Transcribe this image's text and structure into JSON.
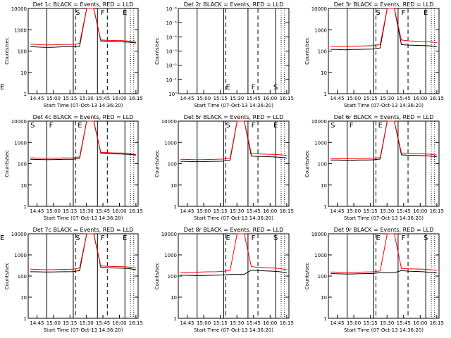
{
  "chart_data": [
    {
      "type": "line",
      "title": "Det 1c BLACK = Events, RED = LLD",
      "xlabel": "Start Time (07-Oct-13 14:36:20)",
      "ylabel": "Counts/sec",
      "ylim": [
        1,
        10000
      ],
      "yscale": "log",
      "y_ticks": [
        "1",
        "10",
        "100",
        "1000",
        "10000"
      ],
      "x_ticks": [
        "14:45",
        "15:00",
        "15:15",
        "15:30",
        "15:45",
        "16:00",
        "16:15"
      ],
      "annotations": [
        "S",
        "F",
        "E"
      ],
      "series": [
        {
          "color": "#000000",
          "values": [
            160,
            155,
            150,
            150,
            155,
            160,
            158,
            170,
            10000,
            10000,
            300,
            290,
            280,
            270,
            260,
            240
          ]
        },
        {
          "color": "#ff0000",
          "values": [
            210,
            200,
            195,
            195,
            200,
            205,
            205,
            230,
            10000,
            10000,
            330,
            320,
            310,
            310,
            290,
            260
          ]
        }
      ]
    },
    {
      "type": "line",
      "title": "Det 2r BLACK = Events, RED = LLD",
      "xlabel": "Start Time (07-Oct-13 14:36:20)",
      "ylabel": "Counts/sec",
      "ylim": [
        1,
        1e-06
      ],
      "yscale": "log",
      "y_ticks": [
        "10⁰",
        "10⁻¹",
        "10⁻²",
        "10⁻³",
        "10⁻⁴",
        "10⁻⁵",
        "10⁻⁶"
      ],
      "x_ticks": [
        "14:45",
        "15:00",
        "15:15",
        "15:30",
        "15:45",
        "16:00",
        "16:15"
      ],
      "annotations": [
        "E",
        "F",
        "S",
        "F",
        "E"
      ],
      "series": []
    },
    {
      "type": "line",
      "title": "Det 3r BLACK = Events, RED = LLD",
      "xlabel": "Start Time (07-Oct-13 14:36:20)",
      "ylabel": "Counts/sec",
      "ylim": [
        1,
        10000
      ],
      "yscale": "log",
      "y_ticks": [
        "1",
        "10",
        "100",
        "1000",
        "10000"
      ],
      "x_ticks": [
        "14:45",
        "15:00",
        "15:15",
        "15:30",
        "15:45",
        "16:00",
        "16:15"
      ],
      "annotations": [
        "S",
        "F",
        "E"
      ],
      "series": [
        {
          "color": "#000000",
          "values": [
            120,
            118,
            115,
            118,
            120,
            122,
            125,
            140,
            10000,
            10000,
            200,
            190,
            185,
            180,
            175,
            165
          ]
        },
        {
          "color": "#ff0000",
          "values": [
            170,
            165,
            165,
            170,
            172,
            175,
            180,
            200,
            10000,
            10000,
            330,
            300,
            290,
            280,
            270,
            250
          ]
        }
      ]
    },
    {
      "type": "line",
      "title": "Det 4c BLACK = Events, RED = LLD",
      "xlabel": "Start Time (07-Oct-13 14:36:20)",
      "ylabel": "Counts/sec",
      "ylim": [
        1,
        10000
      ],
      "yscale": "log",
      "y_ticks": [
        "1",
        "10",
        "100",
        "1000",
        "10000"
      ],
      "x_ticks": [
        "14:45",
        "15:00",
        "15:15",
        "15:30",
        "15:45",
        "16:00",
        "16:15"
      ],
      "annotations": [
        "S",
        "F",
        "E"
      ],
      "series": [
        {
          "color": "#000000",
          "values": [
            160,
            158,
            155,
            155,
            158,
            160,
            162,
            175,
            10000,
            10000,
            310,
            300,
            290,
            285,
            275,
            255
          ]
        },
        {
          "color": "#ff0000",
          "values": [
            190,
            185,
            180,
            180,
            185,
            188,
            190,
            210,
            10000,
            10000,
            340,
            330,
            320,
            320,
            300,
            270
          ]
        }
      ]
    },
    {
      "type": "line",
      "title": "Det 5r BLACK = Events, RED = LLD",
      "xlabel": "Start Time (07-Oct-13 14:36:20)",
      "ylabel": "Counts/sec",
      "ylim": [
        1,
        10000
      ],
      "yscale": "log",
      "y_ticks": [
        "1",
        "10",
        "100",
        "1000",
        "10000"
      ],
      "x_ticks": [
        "14:45",
        "15:00",
        "15:15",
        "15:30",
        "15:45",
        "16:00",
        "16:15"
      ],
      "annotations": [
        "S",
        "F",
        "E"
      ],
      "series": [
        {
          "color": "#000000",
          "values": [
            130,
            128,
            125,
            125,
            128,
            130,
            132,
            145,
            10000,
            10000,
            230,
            220,
            215,
            210,
            200,
            185
          ]
        },
        {
          "color": "#ff0000",
          "values": [
            160,
            158,
            155,
            155,
            158,
            160,
            165,
            180,
            10000,
            10000,
            300,
            290,
            280,
            275,
            265,
            245
          ]
        }
      ]
    },
    {
      "type": "line",
      "title": "Det 6r BLACK = Events, RED = LLD",
      "xlabel": "Start Time (07-Oct-13 14:36:20)",
      "ylabel": "Counts/sec",
      "ylim": [
        1,
        10000
      ],
      "yscale": "log",
      "y_ticks": [
        "1",
        "10",
        "100",
        "1000",
        "10000"
      ],
      "x_ticks": [
        "14:45",
        "15:00",
        "15:15",
        "15:30",
        "15:45",
        "16:00",
        "16:15"
      ],
      "annotations": [
        "S",
        "F",
        "E"
      ],
      "series": [
        {
          "color": "#000000",
          "values": [
            150,
            148,
            145,
            145,
            148,
            150,
            152,
            165,
            10000,
            10000,
            260,
            250,
            245,
            240,
            230,
            210
          ]
        },
        {
          "color": "#ff0000",
          "values": [
            175,
            172,
            170,
            170,
            172,
            175,
            180,
            195,
            10000,
            10000,
            320,
            305,
            295,
            290,
            280,
            255
          ]
        }
      ]
    },
    {
      "type": "line",
      "title": "Det 7c BLACK = Events, RED = LLD",
      "xlabel": "Start Time (07-Oct-13 14:36:20)",
      "ylabel": "Counts/sec",
      "ylim": [
        1,
        10000
      ],
      "yscale": "log",
      "y_ticks": [
        "1",
        "10",
        "100",
        "1000",
        "10000"
      ],
      "x_ticks": [
        "14:45",
        "15:00",
        "15:15",
        "15:30",
        "15:45",
        "16:00",
        "16:15"
      ],
      "annotations": [
        "S",
        "F",
        "E"
      ],
      "series": [
        {
          "color": "#000000",
          "values": [
            160,
            158,
            155,
            155,
            158,
            160,
            162,
            180,
            10000,
            10000,
            260,
            250,
            240,
            235,
            225,
            200
          ]
        },
        {
          "color": "#ff0000",
          "values": [
            210,
            205,
            200,
            200,
            205,
            208,
            212,
            240,
            10000,
            10000,
            300,
            290,
            280,
            280,
            265,
            240
          ]
        }
      ]
    },
    {
      "type": "line",
      "title": "Det 8r BLACK = Events, RED = LLD",
      "xlabel": "Start Time (07-Oct-13 14:36:20)",
      "ylabel": "Counts/sec",
      "ylim": [
        1,
        10000
      ],
      "yscale": "log",
      "y_ticks": [
        "1",
        "10",
        "100",
        "1000",
        "10000"
      ],
      "x_ticks": [
        "14:45",
        "15:00",
        "15:15",
        "15:30",
        "15:45",
        "16:00",
        "16:15"
      ],
      "annotations": [
        "E",
        "F",
        "S",
        "F",
        "E"
      ],
      "series": [
        {
          "color": "#000000",
          "values": [
            110,
            108,
            105,
            105,
            108,
            110,
            112,
            120,
            120,
            120,
            190,
            180,
            175,
            170,
            160,
            145
          ]
        },
        {
          "color": "#ff0000",
          "values": [
            150,
            148,
            150,
            155,
            158,
            160,
            165,
            185,
            10000,
            10000,
            280,
            260,
            250,
            240,
            225,
            200
          ]
        }
      ]
    },
    {
      "type": "line",
      "title": "Det 9r BLACK = Events, RED = LLD",
      "xlabel": "Start Time (07-Oct-13 14:36:20)",
      "ylabel": "Counts/sec",
      "ylim": [
        1,
        10000
      ],
      "yscale": "log",
      "y_ticks": [
        "1",
        "10",
        "100",
        "1000",
        "10000"
      ],
      "x_ticks": [
        "14:45",
        "15:00",
        "15:15",
        "15:30",
        "15:45",
        "16:00",
        "16:15"
      ],
      "annotations": [
        "E",
        "F",
        "S",
        "F",
        "E"
      ],
      "series": [
        {
          "color": "#000000",
          "values": [
            130,
            128,
            125,
            125,
            128,
            130,
            132,
            145,
            145,
            145,
            180,
            170,
            165,
            160,
            150,
            140
          ]
        },
        {
          "color": "#ff0000",
          "values": [
            155,
            152,
            150,
            150,
            152,
            155,
            158,
            175,
            10000,
            10000,
            230,
            220,
            215,
            210,
            200,
            185
          ]
        }
      ]
    }
  ]
}
